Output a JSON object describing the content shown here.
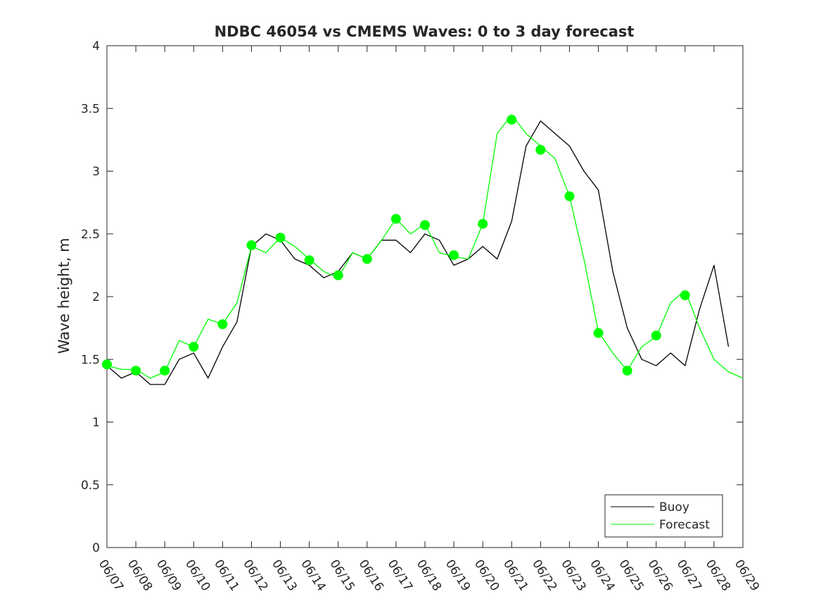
{
  "chart_data": {
    "type": "line",
    "title": "NDBC 46054 vs CMEMS Waves: 0 to 3 day forecast",
    "xlabel": "",
    "ylabel": "Wave height, m",
    "ylim": [
      0,
      4
    ],
    "yticks": [
      "0",
      "0.5",
      "1",
      "1.5",
      "2",
      "2.5",
      "3",
      "3.5",
      "4"
    ],
    "xlim": [
      0,
      22
    ],
    "xticks": [
      "06/07",
      "06/08",
      "06/09",
      "06/10",
      "06/11",
      "06/12",
      "06/13",
      "06/14",
      "06/15",
      "06/16",
      "06/17",
      "06/18",
      "06/19",
      "06/20",
      "06/21",
      "06/22",
      "06/23",
      "06/24",
      "06/25",
      "06/26",
      "06/27",
      "06/28",
      "06/29"
    ],
    "legend": {
      "position": "bottom-right",
      "entries": [
        "Buoy",
        "Forecast"
      ]
    },
    "colors": {
      "buoy": "#000000",
      "forecast": "#00ff00"
    },
    "series": [
      {
        "name": "Buoy",
        "x": [
          0,
          0.5,
          1,
          1.5,
          2,
          2.5,
          3,
          3.5,
          4,
          4.5,
          5,
          5.5,
          6,
          6.5,
          7,
          7.5,
          8,
          8.5,
          9,
          9.5,
          10,
          10.5,
          11,
          11.5,
          12,
          12.5,
          13,
          13.5,
          14,
          14.5,
          15,
          15.5,
          16,
          16.5,
          17,
          17.5,
          18,
          18.5,
          19,
          19.5,
          20,
          20.5,
          21,
          21.5,
          22
        ],
        "y": [
          1.45,
          1.35,
          1.4,
          1.3,
          1.3,
          1.5,
          1.55,
          1.35,
          1.6,
          1.8,
          2.4,
          2.5,
          2.45,
          2.3,
          2.25,
          2.15,
          2.2,
          2.35,
          2.3,
          2.45,
          2.45,
          2.35,
          2.5,
          2.45,
          2.25,
          2.3,
          2.4,
          2.3,
          2.6,
          3.2,
          3.4,
          3.3,
          3.2,
          3.0,
          2.85,
          2.2,
          1.75,
          1.5,
          1.45,
          1.55,
          1.45,
          1.9,
          2.25,
          1.6,
          null
        ]
      },
      {
        "name": "Forecast",
        "x": [
          0,
          0.5,
          1,
          1.5,
          2,
          2.5,
          3,
          3.5,
          4,
          4.5,
          5,
          5.5,
          6,
          6.5,
          7,
          7.5,
          8,
          8.5,
          9,
          9.5,
          10,
          10.5,
          11,
          11.5,
          12,
          12.5,
          13,
          13.5,
          14,
          14.5,
          15,
          15.5,
          16,
          16.5,
          17,
          17.5,
          18,
          18.5,
          19,
          19.5,
          20,
          20.5,
          21,
          21.5,
          22
        ],
        "y": [
          1.45,
          1.42,
          1.42,
          1.35,
          1.4,
          1.65,
          1.6,
          1.82,
          1.78,
          1.95,
          2.4,
          2.35,
          2.47,
          2.4,
          2.3,
          2.2,
          2.15,
          2.35,
          2.3,
          2.45,
          2.62,
          2.5,
          2.58,
          2.35,
          2.32,
          2.3,
          2.58,
          3.3,
          3.45,
          3.3,
          3.2,
          3.1,
          2.8,
          2.3,
          1.72,
          1.55,
          1.41,
          1.6,
          1.68,
          1.95,
          2.05,
          1.75,
          1.5,
          1.4,
          1.35
        ]
      }
    ],
    "markers": {
      "name": "Forecast",
      "x": [
        0,
        1,
        2,
        3,
        4,
        5,
        6,
        7,
        8,
        9,
        10,
        11,
        12,
        13,
        14,
        15,
        16,
        17,
        18,
        19,
        20
      ],
      "y": [
        1.46,
        1.41,
        1.41,
        1.6,
        1.78,
        2.41,
        2.47,
        2.29,
        2.17,
        2.3,
        2.62,
        2.57,
        2.33,
        2.58,
        3.41,
        3.17,
        2.8,
        1.71,
        1.41,
        1.69,
        2.01
      ]
    }
  }
}
